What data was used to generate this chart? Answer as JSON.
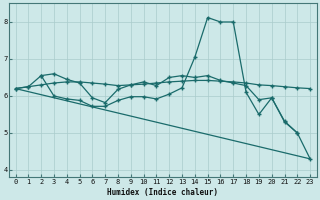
{
  "xlabel": "Humidex (Indice chaleur)",
  "background_color": "#cde8e8",
  "grid_color": "#aacccc",
  "line_color": "#1a6b6b",
  "xlim": [
    -0.5,
    23.5
  ],
  "ylim": [
    3.8,
    8.5
  ],
  "yticks": [
    4,
    5,
    6,
    7,
    8
  ],
  "xticks": [
    0,
    1,
    2,
    3,
    4,
    5,
    6,
    7,
    8,
    9,
    10,
    11,
    12,
    13,
    14,
    15,
    16,
    17,
    18,
    19,
    20,
    21,
    22,
    23
  ],
  "line1_x": [
    0,
    1,
    2,
    3,
    4,
    5,
    6,
    7,
    8,
    9,
    10,
    11,
    12,
    13,
    14,
    15,
    16,
    17,
    18,
    19,
    20,
    21,
    22,
    23
  ],
  "line1_y": [
    6.2,
    6.25,
    6.3,
    6.35,
    6.38,
    6.38,
    6.35,
    6.32,
    6.28,
    6.3,
    6.32,
    6.35,
    6.38,
    6.4,
    6.42,
    6.42,
    6.4,
    6.38,
    6.35,
    6.3,
    6.28,
    6.25,
    6.22,
    6.2
  ],
  "line2_x": [
    0,
    1,
    2,
    3,
    4,
    5,
    6,
    7,
    8,
    9,
    10,
    11,
    12,
    13,
    14,
    15,
    16,
    17,
    18,
    19,
    20,
    21,
    22
  ],
  "line2_y": [
    6.2,
    6.25,
    6.55,
    6.6,
    6.45,
    6.35,
    5.95,
    5.82,
    6.18,
    6.3,
    6.38,
    6.28,
    6.5,
    6.55,
    6.5,
    6.55,
    6.42,
    6.35,
    6.28,
    5.9,
    5.95,
    5.32,
    5.0
  ],
  "line3_x": [
    2,
    3,
    4,
    5,
    6,
    7,
    8,
    9,
    10,
    11,
    12,
    13,
    14,
    15,
    16,
    17,
    18,
    19,
    20,
    21,
    22,
    23
  ],
  "line3_y": [
    6.55,
    6.0,
    5.92,
    5.88,
    5.72,
    5.72,
    5.88,
    5.98,
    5.98,
    5.92,
    6.05,
    6.22,
    7.05,
    8.12,
    8.0,
    8.0,
    6.1,
    5.5,
    5.95,
    5.3,
    5.0,
    4.3
  ],
  "line4_x": [
    0,
    23
  ],
  "line4_y": [
    6.2,
    4.3
  ]
}
